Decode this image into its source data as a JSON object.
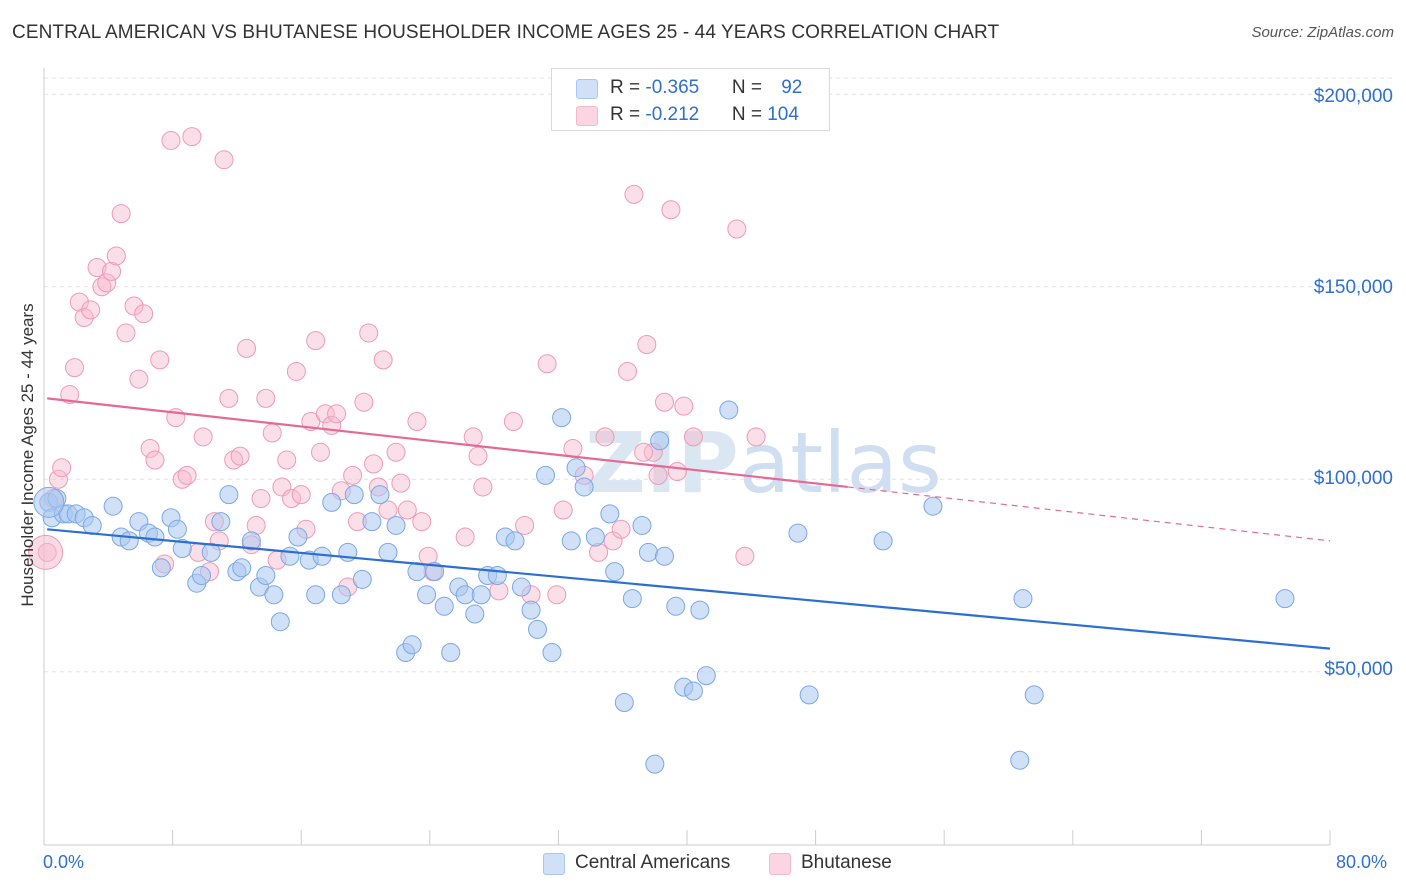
{
  "title": "CENTRAL AMERICAN VS BHUTANESE HOUSEHOLDER INCOME AGES 25 - 44 YEARS CORRELATION CHART",
  "source": "Source: ZipAtlas.com",
  "watermark": "ZIPatlas",
  "legend": {
    "rows": [
      {
        "r_label": "R = ",
        "r_value": "-0.365",
        "n_label": "N = ",
        "n_value": "92",
        "color": "#a9c7f0"
      },
      {
        "r_label": "R = ",
        "r_value": "-0.212",
        "n_label": "N = ",
        "n_value": "104",
        "color": "#f6b8cb"
      }
    ]
  },
  "colors": {
    "blue_fill": "#a9c7f0",
    "blue_line": "#2b6fd1",
    "pink_fill": "#f6b8cb",
    "pink_line": "#e46a93",
    "tick_text": "#2f6fd0",
    "grid": "#e3e3e3"
  },
  "chart_data": {
    "type": "scatter",
    "title": "CENTRAL AMERICAN VS BHUTANESE HOUSEHOLDER INCOME AGES 25 - 44 YEARS CORRELATION CHART",
    "xlabel": "",
    "ylabel": "Householder Income Ages 25 - 44 years",
    "xlim": [
      0,
      80
    ],
    "ylim": [
      5000,
      205000
    ],
    "x_tick_labels": [
      "0.0%",
      "80.0%"
    ],
    "y_ticks": [
      50000,
      100000,
      150000,
      200000
    ],
    "y_tick_labels": [
      "$50,000",
      "$100,000",
      "$150,000",
      "$200,000"
    ],
    "grid": true,
    "legend_position": "top-center",
    "series": [
      {
        "name": "Central Americans",
        "color": "#a9c7f0",
        "trend": {
          "x0": 0.2,
          "y0": 87000,
          "x1": 80,
          "y1": 56000
        },
        "points": [
          [
            0.3,
            94000
          ],
          [
            0.5,
            90000
          ],
          [
            0.8,
            95000
          ],
          [
            1.2,
            91000
          ],
          [
            1.5,
            91000
          ],
          [
            2.0,
            91000
          ],
          [
            2.5,
            90000
          ],
          [
            3.0,
            88000
          ],
          [
            4.3,
            93000
          ],
          [
            4.8,
            85000
          ],
          [
            5.3,
            84000
          ],
          [
            5.9,
            89000
          ],
          [
            6.5,
            86000
          ],
          [
            6.9,
            85000
          ],
          [
            7.3,
            77000
          ],
          [
            7.9,
            90000
          ],
          [
            8.3,
            87000
          ],
          [
            8.6,
            82000
          ],
          [
            9.5,
            73000
          ],
          [
            9.8,
            75000
          ],
          [
            10.4,
            81000
          ],
          [
            11.0,
            89000
          ],
          [
            11.5,
            96000
          ],
          [
            12.0,
            76000
          ],
          [
            12.3,
            77000
          ],
          [
            12.9,
            84000
          ],
          [
            13.4,
            72000
          ],
          [
            13.8,
            75000
          ],
          [
            14.3,
            70000
          ],
          [
            14.7,
            63000
          ],
          [
            15.3,
            80000
          ],
          [
            15.8,
            85000
          ],
          [
            16.5,
            79000
          ],
          [
            16.9,
            70000
          ],
          [
            17.3,
            80000
          ],
          [
            17.9,
            94000
          ],
          [
            18.5,
            70000
          ],
          [
            18.9,
            81000
          ],
          [
            19.3,
            96000
          ],
          [
            19.8,
            74000
          ],
          [
            20.4,
            89000
          ],
          [
            20.9,
            96000
          ],
          [
            21.4,
            81000
          ],
          [
            21.9,
            88000
          ],
          [
            22.5,
            55000
          ],
          [
            22.9,
            57000
          ],
          [
            23.2,
            76000
          ],
          [
            23.8,
            70000
          ],
          [
            24.3,
            76000
          ],
          [
            24.9,
            67000
          ],
          [
            25.3,
            55000
          ],
          [
            25.8,
            72000
          ],
          [
            26.2,
            70000
          ],
          [
            26.8,
            65000
          ],
          [
            27.2,
            70000
          ],
          [
            27.6,
            75000
          ],
          [
            28.2,
            75000
          ],
          [
            28.7,
            85000
          ],
          [
            29.3,
            84000
          ],
          [
            29.7,
            72000
          ],
          [
            30.3,
            66000
          ],
          [
            30.7,
            61000
          ],
          [
            31.2,
            101000
          ],
          [
            31.6,
            55000
          ],
          [
            32.2,
            116000
          ],
          [
            32.8,
            84000
          ],
          [
            33.1,
            103000
          ],
          [
            33.6,
            98000
          ],
          [
            34.3,
            85000
          ],
          [
            35.2,
            91000
          ],
          [
            35.5,
            76000
          ],
          [
            36.1,
            42000
          ],
          [
            36.6,
            69000
          ],
          [
            37.2,
            88000
          ],
          [
            37.6,
            81000
          ],
          [
            38.3,
            110000
          ],
          [
            38.6,
            80000
          ],
          [
            39.3,
            67000
          ],
          [
            39.8,
            46000
          ],
          [
            40.4,
            45000
          ],
          [
            40.8,
            66000
          ],
          [
            41.2,
            49000
          ],
          [
            42.6,
            118000
          ],
          [
            46.9,
            86000
          ],
          [
            47.6,
            44000
          ],
          [
            52.2,
            84000
          ],
          [
            55.3,
            93000
          ],
          [
            60.7,
            27000
          ],
          [
            60.9,
            69000
          ],
          [
            61.6,
            44000
          ],
          [
            77.2,
            69000
          ],
          [
            38.0,
            26000
          ]
        ]
      },
      {
        "name": "Bhutanese",
        "color": "#f6b8cb",
        "trend": {
          "x0": 0.2,
          "y0": 121000,
          "x1": 50,
          "y1": 98000,
          "dash_to_x": 80,
          "dash_to_y": 84000
        },
        "points": [
          [
            0.2,
            81000
          ],
          [
            0.6,
            95000
          ],
          [
            0.9,
            100000
          ],
          [
            1.1,
            103000
          ],
          [
            1.6,
            122000
          ],
          [
            1.9,
            129000
          ],
          [
            2.2,
            146000
          ],
          [
            2.5,
            142000
          ],
          [
            2.9,
            144000
          ],
          [
            3.3,
            155000
          ],
          [
            3.6,
            150000
          ],
          [
            3.9,
            151000
          ],
          [
            4.2,
            154000
          ],
          [
            4.5,
            158000
          ],
          [
            4.8,
            169000
          ],
          [
            5.1,
            138000
          ],
          [
            5.6,
            145000
          ],
          [
            5.9,
            126000
          ],
          [
            6.2,
            143000
          ],
          [
            6.6,
            108000
          ],
          [
            6.9,
            105000
          ],
          [
            7.2,
            131000
          ],
          [
            7.5,
            78000
          ],
          [
            7.9,
            188000
          ],
          [
            8.2,
            116000
          ],
          [
            8.6,
            100000
          ],
          [
            8.9,
            101000
          ],
          [
            9.2,
            189000
          ],
          [
            9.6,
            81000
          ],
          [
            9.9,
            111000
          ],
          [
            10.3,
            76000
          ],
          [
            10.6,
            89000
          ],
          [
            10.9,
            84000
          ],
          [
            11.2,
            183000
          ],
          [
            11.5,
            121000
          ],
          [
            11.8,
            105000
          ],
          [
            12.2,
            106000
          ],
          [
            12.6,
            134000
          ],
          [
            12.9,
            83000
          ],
          [
            13.2,
            88000
          ],
          [
            13.5,
            95000
          ],
          [
            13.8,
            121000
          ],
          [
            14.2,
            112000
          ],
          [
            14.5,
            79000
          ],
          [
            14.8,
            98000
          ],
          [
            15.1,
            105000
          ],
          [
            15.4,
            95000
          ],
          [
            15.7,
            128000
          ],
          [
            16.0,
            96000
          ],
          [
            16.3,
            87000
          ],
          [
            16.6,
            115000
          ],
          [
            16.9,
            136000
          ],
          [
            17.2,
            107000
          ],
          [
            17.5,
            117000
          ],
          [
            17.9,
            114000
          ],
          [
            18.2,
            117000
          ],
          [
            18.5,
            97000
          ],
          [
            18.9,
            72000
          ],
          [
            19.2,
            101000
          ],
          [
            19.5,
            89000
          ],
          [
            19.9,
            120000
          ],
          [
            20.2,
            138000
          ],
          [
            20.5,
            104000
          ],
          [
            20.8,
            98000
          ],
          [
            21.1,
            131000
          ],
          [
            21.4,
            92000
          ],
          [
            21.9,
            107000
          ],
          [
            22.2,
            99000
          ],
          [
            22.6,
            92000
          ],
          [
            23.2,
            115000
          ],
          [
            23.5,
            89000
          ],
          [
            23.9,
            80000
          ],
          [
            24.2,
            76000
          ],
          [
            26.2,
            85000
          ],
          [
            26.7,
            111000
          ],
          [
            27.0,
            106000
          ],
          [
            27.3,
            98000
          ],
          [
            28.3,
            71000
          ],
          [
            29.2,
            115000
          ],
          [
            29.9,
            88000
          ],
          [
            30.3,
            70000
          ],
          [
            31.3,
            130000
          ],
          [
            31.9,
            70000
          ],
          [
            32.3,
            92000
          ],
          [
            32.9,
            108000
          ],
          [
            33.6,
            101000
          ],
          [
            34.5,
            81000
          ],
          [
            34.9,
            111000
          ],
          [
            35.4,
            84000
          ],
          [
            35.9,
            87000
          ],
          [
            36.3,
            128000
          ],
          [
            36.7,
            174000
          ],
          [
            37.5,
            135000
          ],
          [
            37.9,
            107000
          ],
          [
            38.2,
            101000
          ],
          [
            38.6,
            120000
          ],
          [
            39.0,
            170000
          ],
          [
            39.4,
            102000
          ],
          [
            39.8,
            119000
          ],
          [
            40.4,
            111000
          ],
          [
            43.1,
            165000
          ],
          [
            43.6,
            80000
          ],
          [
            44.3,
            111000
          ],
          [
            37.3,
            107000
          ]
        ]
      }
    ]
  },
  "bottom_legend": [
    {
      "label": "Central Americans",
      "color": "#a9c7f0"
    },
    {
      "label": "Bhutanese",
      "color": "#f6b8cb"
    }
  ]
}
